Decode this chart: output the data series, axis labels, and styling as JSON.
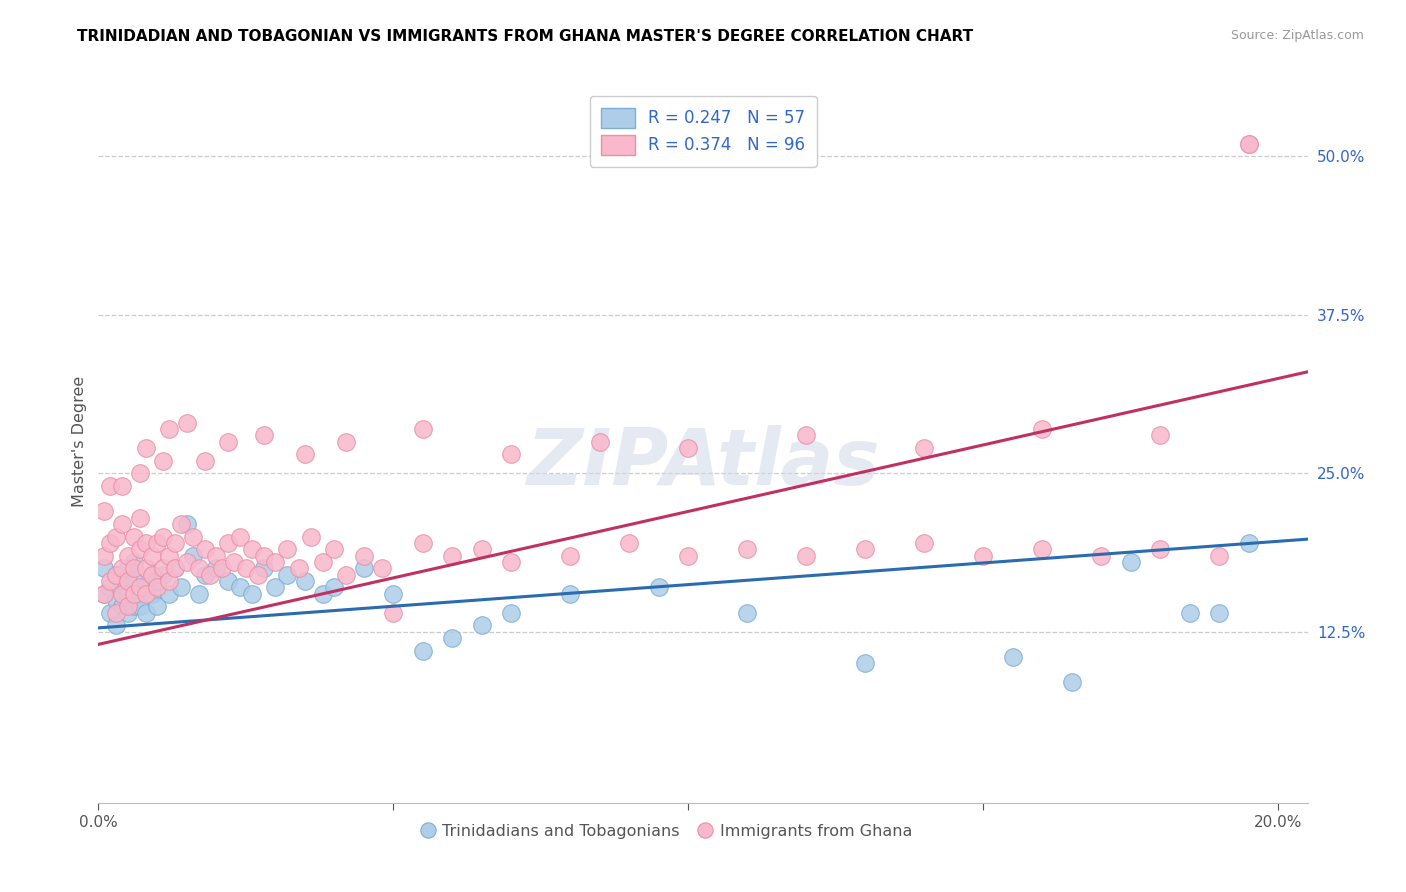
{
  "title": "TRINIDADIAN AND TOBAGONIAN VS IMMIGRANTS FROM GHANA MASTER'S DEGREE CORRELATION CHART",
  "source": "Source: ZipAtlas.com",
  "ylabel": "Master's Degree",
  "xlim": [
    0.0,
    0.205
  ],
  "ylim": [
    -0.01,
    0.56
  ],
  "ytick_right": [
    0.125,
    0.25,
    0.375,
    0.5
  ],
  "ytick_right_labels": [
    "12.5%",
    "25.0%",
    "37.5%",
    "50.0%"
  ],
  "legend1_label": "R = 0.247   N = 57",
  "legend2_label": "R = 0.374   N = 96",
  "legend_bottom1": "Trinidadians and Tobagonians",
  "legend_bottom2": "Immigrants from Ghana",
  "blue_fill": "#aecde8",
  "blue_edge": "#7bafd4",
  "pink_fill": "#f9b8cc",
  "pink_edge": "#e890a8",
  "blue_line_color": "#2b6cb0",
  "pink_line_color": "#c03060",
  "legend_text_color": "#3366cc",
  "watermark": "ZIPAtlas",
  "blue_trend_y0": 0.128,
  "blue_trend_y1": 0.198,
  "pink_trend_y0": 0.115,
  "pink_trend_y1": 0.33,
  "blue_x": [
    0.001,
    0.001,
    0.002,
    0.002,
    0.003,
    0.003,
    0.003,
    0.004,
    0.004,
    0.005,
    0.005,
    0.005,
    0.006,
    0.006,
    0.006,
    0.007,
    0.007,
    0.008,
    0.008,
    0.009,
    0.009,
    0.01,
    0.01,
    0.011,
    0.012,
    0.013,
    0.014,
    0.015,
    0.016,
    0.017,
    0.018,
    0.02,
    0.022,
    0.024,
    0.026,
    0.028,
    0.03,
    0.032,
    0.035,
    0.038,
    0.04,
    0.045,
    0.05,
    0.055,
    0.06,
    0.065,
    0.07,
    0.08,
    0.095,
    0.11,
    0.13,
    0.155,
    0.165,
    0.175,
    0.185,
    0.19,
    0.195
  ],
  "blue_y": [
    0.155,
    0.175,
    0.14,
    0.16,
    0.15,
    0.13,
    0.17,
    0.145,
    0.165,
    0.14,
    0.155,
    0.175,
    0.145,
    0.165,
    0.18,
    0.155,
    0.145,
    0.16,
    0.14,
    0.155,
    0.17,
    0.145,
    0.165,
    0.17,
    0.155,
    0.175,
    0.16,
    0.21,
    0.185,
    0.155,
    0.17,
    0.175,
    0.165,
    0.16,
    0.155,
    0.175,
    0.16,
    0.17,
    0.165,
    0.155,
    0.16,
    0.175,
    0.155,
    0.11,
    0.12,
    0.13,
    0.14,
    0.155,
    0.16,
    0.14,
    0.1,
    0.105,
    0.085,
    0.18,
    0.14,
    0.14,
    0.195
  ],
  "pink_x": [
    0.001,
    0.001,
    0.001,
    0.002,
    0.002,
    0.002,
    0.003,
    0.003,
    0.003,
    0.004,
    0.004,
    0.004,
    0.005,
    0.005,
    0.005,
    0.006,
    0.006,
    0.006,
    0.007,
    0.007,
    0.007,
    0.008,
    0.008,
    0.008,
    0.009,
    0.009,
    0.01,
    0.01,
    0.011,
    0.011,
    0.012,
    0.012,
    0.013,
    0.013,
    0.014,
    0.015,
    0.016,
    0.017,
    0.018,
    0.019,
    0.02,
    0.021,
    0.022,
    0.023,
    0.024,
    0.025,
    0.026,
    0.027,
    0.028,
    0.03,
    0.032,
    0.034,
    0.036,
    0.038,
    0.04,
    0.042,
    0.045,
    0.048,
    0.05,
    0.055,
    0.06,
    0.065,
    0.07,
    0.08,
    0.09,
    0.1,
    0.11,
    0.12,
    0.13,
    0.14,
    0.15,
    0.16,
    0.17,
    0.18,
    0.19,
    0.195,
    0.008,
    0.012,
    0.015,
    0.018,
    0.022,
    0.028,
    0.035,
    0.042,
    0.055,
    0.07,
    0.085,
    0.1,
    0.12,
    0.14,
    0.16,
    0.18,
    0.004,
    0.007,
    0.011,
    0.195
  ],
  "pink_y": [
    0.155,
    0.185,
    0.22,
    0.165,
    0.195,
    0.24,
    0.17,
    0.2,
    0.14,
    0.175,
    0.21,
    0.155,
    0.185,
    0.165,
    0.145,
    0.2,
    0.175,
    0.155,
    0.215,
    0.19,
    0.16,
    0.175,
    0.155,
    0.195,
    0.17,
    0.185,
    0.16,
    0.195,
    0.175,
    0.2,
    0.165,
    0.185,
    0.175,
    0.195,
    0.21,
    0.18,
    0.2,
    0.175,
    0.19,
    0.17,
    0.185,
    0.175,
    0.195,
    0.18,
    0.2,
    0.175,
    0.19,
    0.17,
    0.185,
    0.18,
    0.19,
    0.175,
    0.2,
    0.18,
    0.19,
    0.17,
    0.185,
    0.175,
    0.14,
    0.195,
    0.185,
    0.19,
    0.18,
    0.185,
    0.195,
    0.185,
    0.19,
    0.185,
    0.19,
    0.195,
    0.185,
    0.19,
    0.185,
    0.19,
    0.185,
    0.51,
    0.27,
    0.285,
    0.29,
    0.26,
    0.275,
    0.28,
    0.265,
    0.275,
    0.285,
    0.265,
    0.275,
    0.27,
    0.28,
    0.27,
    0.285,
    0.28,
    0.24,
    0.25,
    0.26,
    0.51
  ]
}
